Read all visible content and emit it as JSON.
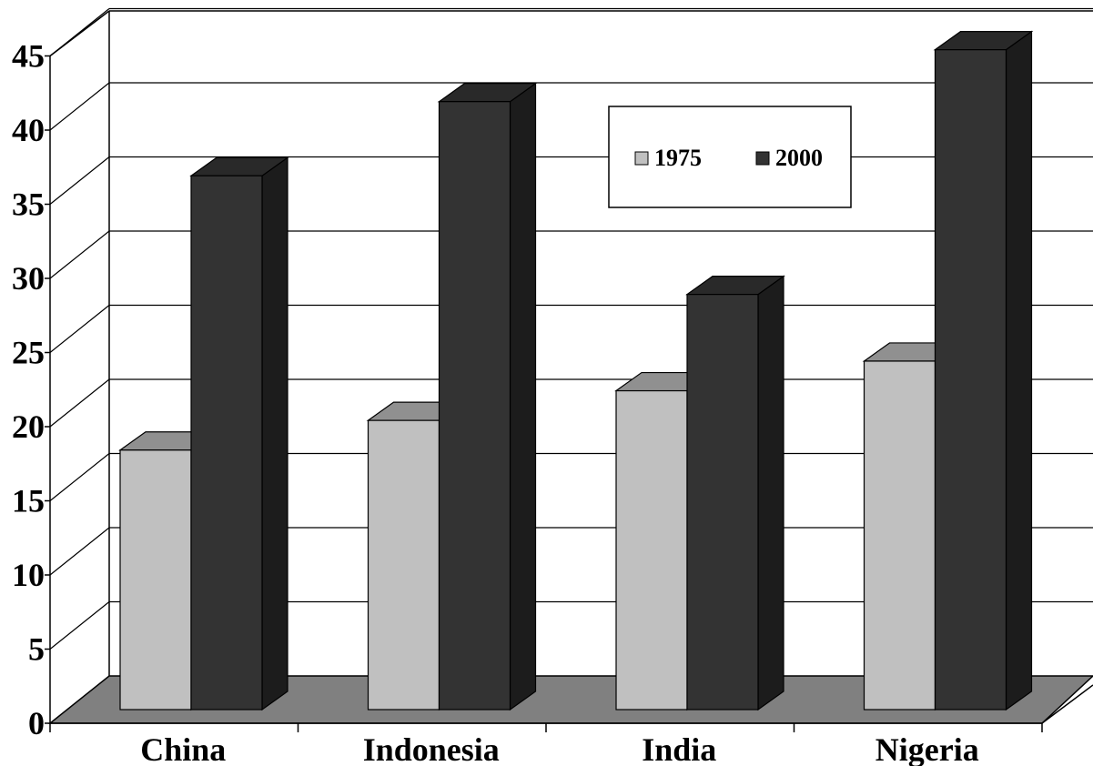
{
  "chart_data": {
    "type": "bar",
    "style": "3d-clustered-column",
    "categories": [
      "China",
      "Indonesia",
      "India",
      "Nigeria"
    ],
    "series": [
      {
        "name": "1975",
        "values": [
          17.5,
          19.5,
          21.5,
          23.5
        ],
        "color": "#c0c0c0"
      },
      {
        "name": "2000",
        "values": [
          36,
          41,
          28,
          44.5
        ],
        "color": "#333333"
      }
    ],
    "y_ticks": [
      "0",
      "5",
      "10",
      "15",
      "20",
      "25",
      "30",
      "35",
      "40",
      "45"
    ],
    "ylim": [
      0,
      45
    ],
    "title": "",
    "xlabel": "",
    "ylabel": "",
    "grid": true,
    "legend_position": "top-right",
    "colors": {
      "floor": "#808080",
      "grid": "#000000",
      "background": "#ffffff"
    }
  }
}
